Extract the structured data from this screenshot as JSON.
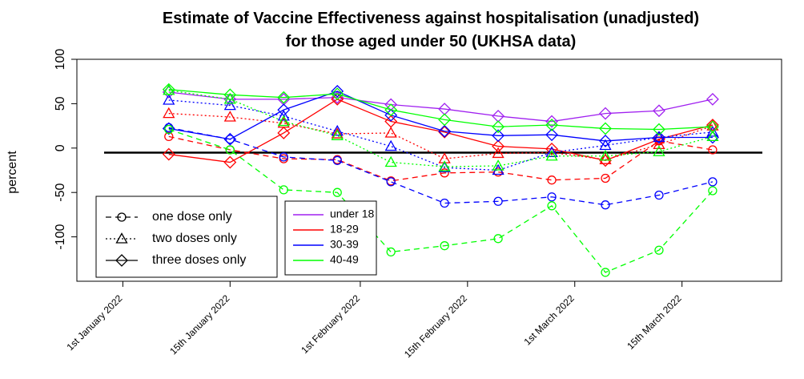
{
  "chart_data": {
    "type": "line",
    "title": "Estimate of Vaccine Effectiveness against hospitalisation (unadjusted)",
    "subtitle": "for those aged under 50 (UKHSA data)",
    "ylabel": "percent",
    "xlabel": "",
    "ylim": [
      -150,
      100
    ],
    "yticks": [
      100,
      50,
      0,
      -50,
      -100
    ],
    "xlim": [
      "2021-12-26",
      "2022-03-28"
    ],
    "xticks": [
      "1st January 2022",
      "15th January 2022",
      "1st February 2022",
      "15th February 2022",
      "1st March 2022",
      "15th March 2022"
    ],
    "xtick_dates": [
      "2022-01-01",
      "2022-01-15",
      "2022-02-01",
      "2022-02-15",
      "2022-03-01",
      "2022-03-15"
    ],
    "x": [
      "2022-01-07",
      "2022-01-15",
      "2022-01-22",
      "2022-01-29",
      "2022-02-05",
      "2022-02-12",
      "2022-02-19",
      "2022-02-26",
      "2022-03-05",
      "2022-03-12",
      "2022-03-19"
    ],
    "reference_line": 0,
    "grid": false,
    "colors": {
      "under 18": "#a020f0",
      "18-29": "#ff0000",
      "30-39": "#0000ff",
      "40-49": "#00ff00"
    },
    "series": [
      {
        "age": "under 18",
        "dose": "three doses only",
        "values": [
          63,
          55,
          55,
          57,
          49,
          44,
          36,
          30,
          39,
          42,
          55
        ]
      },
      {
        "age": "18-29",
        "dose": "one dose only",
        "values": [
          13,
          -2,
          -12,
          -13,
          -37,
          -28,
          -27,
          -36,
          -34,
          8,
          -2
        ]
      },
      {
        "age": "18-29",
        "dose": "two doses only",
        "values": [
          39,
          35,
          28,
          16,
          17,
          -12,
          -6,
          -5,
          -13,
          4,
          25
        ]
      },
      {
        "age": "18-29",
        "dose": "three doses only",
        "values": [
          -7,
          -16,
          17,
          55,
          30,
          18,
          2,
          -1,
          -14,
          10,
          26
        ]
      },
      {
        "age": "30-39",
        "dose": "one dose only",
        "values": [
          23,
          10,
          -10,
          -14,
          -38,
          -62,
          -60,
          -55,
          -64,
          -53,
          -38
        ]
      },
      {
        "age": "30-39",
        "dose": "two doses only",
        "values": [
          54,
          48,
          36,
          19,
          2,
          -22,
          -25,
          -5,
          3,
          12,
          18
        ]
      },
      {
        "age": "30-39",
        "dose": "three doses only",
        "values": [
          22,
          10,
          43,
          64,
          37,
          19,
          14,
          15,
          8,
          12,
          12
        ]
      },
      {
        "age": "40-49",
        "dose": "one dose only",
        "values": [
          21,
          -2,
          -47,
          -50,
          -117,
          -110,
          -102,
          -65,
          -140,
          -115,
          -48
        ]
      },
      {
        "age": "40-49",
        "dose": "two doses only",
        "values": [
          65,
          55,
          30,
          14,
          -16,
          -21,
          -20,
          -9,
          -9,
          -4,
          13
        ]
      },
      {
        "age": "40-49",
        "dose": "three doses only",
        "values": [
          66,
          60,
          57,
          61,
          43,
          32,
          24,
          26,
          22,
          21,
          24
        ]
      }
    ],
    "legend_doses": [
      {
        "label": "one dose only",
        "line": "dashed",
        "marker": "circle"
      },
      {
        "label": "two doses only",
        "line": "dotted",
        "marker": "triangle"
      },
      {
        "label": "three doses only",
        "line": "solid",
        "marker": "diamond"
      }
    ],
    "legend_ages": [
      "under 18",
      "18-29",
      "30-39",
      "40-49"
    ],
    "legend_placement": "bottom-left"
  }
}
